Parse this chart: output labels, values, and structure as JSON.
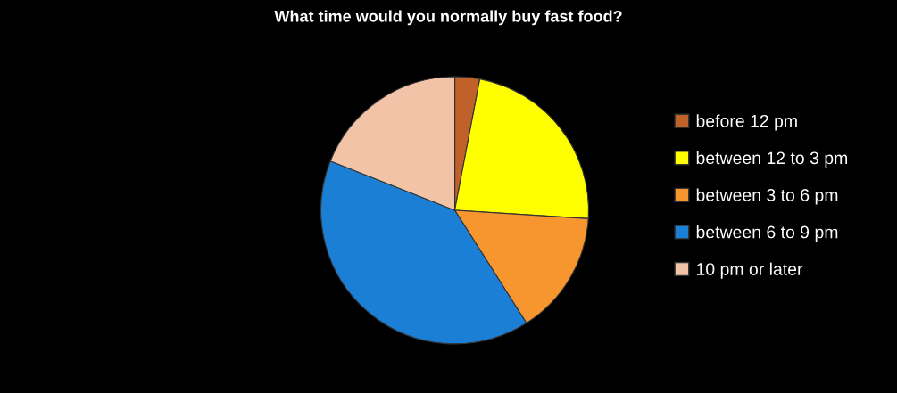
{
  "chart_data": {
    "type": "pie",
    "title": "What time would you normally buy fast food?",
    "categories": [
      "before 12 pm",
      "between 12 to 3 pm",
      "between 3 to 6 pm",
      "between 6 to 9 pm",
      "10 pm or later"
    ],
    "values": [
      3,
      23,
      15,
      40,
      19
    ],
    "colors": [
      "#c0612b",
      "#ffff00",
      "#f7962f",
      "#1c7fd6",
      "#f2c3a7"
    ],
    "legend": "right"
  }
}
